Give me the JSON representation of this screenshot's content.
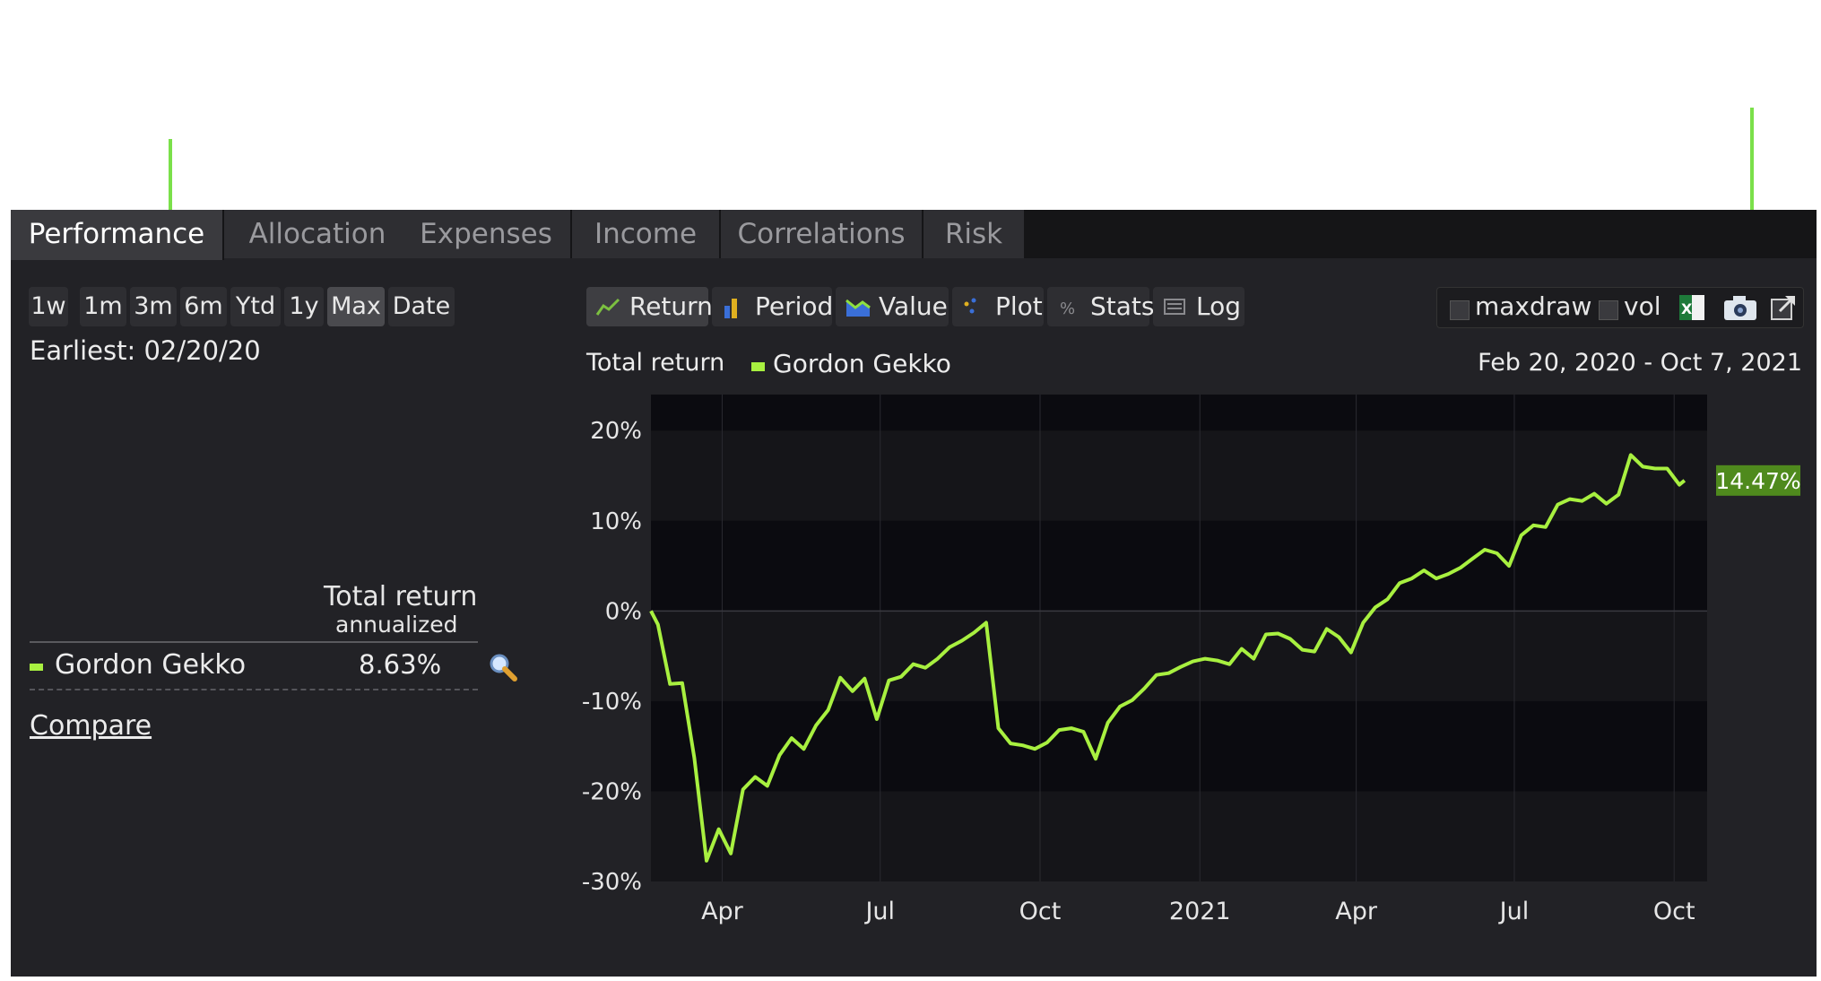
{
  "tabs": [
    "Performance",
    "Allocation",
    "Expenses",
    "Income",
    "Correlations",
    "Risk"
  ],
  "active_tab": "Performance",
  "ranges": [
    "1w",
    "1m",
    "3m",
    "6m",
    "Ytd",
    "1y",
    "Max",
    "Date"
  ],
  "active_range": "Max",
  "earliest": "Earliest: 02/20/20",
  "table": {
    "header": "Total return",
    "subheader": "annualized",
    "row_name": "Gordon Gekko",
    "row_value": "8.63%"
  },
  "compare_link": "Compare",
  "views": [
    {
      "label": "Return",
      "icon": "line-chart-icon"
    },
    {
      "label": "Period",
      "icon": "bar-chart-icon"
    },
    {
      "label": "Value",
      "icon": "area-chart-icon"
    },
    {
      "label": "Plot",
      "icon": "scatter-icon"
    },
    {
      "label": "Stats",
      "icon": "percent-icon"
    },
    {
      "label": "Log",
      "icon": "list-icon"
    }
  ],
  "active_view": "Return",
  "options": {
    "maxdraw_label": "maxdraw",
    "vol_label": "vol",
    "maxdraw_checked": false,
    "vol_checked": false
  },
  "chart_header": {
    "title": "Total return",
    "legend": "Gordon Gekko",
    "date_range": "Feb 20, 2020 - Oct 7, 2021"
  },
  "colors": {
    "series": "#a8f040",
    "end_label_bg": "#4f8a1d",
    "arrow": "#7be04a"
  },
  "chart_data": {
    "type": "line",
    "title": "Total return",
    "xlabel": "",
    "ylabel": "",
    "ylim": [
      -30,
      24
    ],
    "y_ticks": [
      20,
      10,
      0,
      -10,
      -20,
      -30
    ],
    "y_tick_labels": [
      "20%",
      "10%",
      "0%",
      "-10%",
      "-20%",
      "-30%"
    ],
    "x_tick_labels": [
      "Apr",
      "Jul",
      "Oct",
      "2021",
      "Apr",
      "Jul",
      "Oct"
    ],
    "x_tick_dates": [
      "2020-04-01",
      "2020-07-01",
      "2020-10-01",
      "2021-01-01",
      "2021-04-01",
      "2021-07-01",
      "2021-10-01"
    ],
    "xlim": [
      "2020-02-20",
      "2021-10-20"
    ],
    "end_label": "14.47%",
    "series": [
      {
        "name": "Gordon Gekko",
        "points": [
          [
            "2020-02-20",
            0.0
          ],
          [
            "2020-02-24",
            -1.5
          ],
          [
            "2020-03-02",
            -8.1
          ],
          [
            "2020-03-09",
            -8.0
          ],
          [
            "2020-03-16",
            -16.3
          ],
          [
            "2020-03-23",
            -27.7
          ],
          [
            "2020-03-30",
            -24.2
          ],
          [
            "2020-04-06",
            -26.9
          ],
          [
            "2020-04-13",
            -19.8
          ],
          [
            "2020-04-20",
            -18.4
          ],
          [
            "2020-04-27",
            -19.4
          ],
          [
            "2020-05-04",
            -16.0
          ],
          [
            "2020-05-11",
            -14.1
          ],
          [
            "2020-05-18",
            -15.3
          ],
          [
            "2020-05-25",
            -12.7
          ],
          [
            "2020-06-01",
            -11.0
          ],
          [
            "2020-06-08",
            -7.4
          ],
          [
            "2020-06-15",
            -8.9
          ],
          [
            "2020-06-22",
            -7.5
          ],
          [
            "2020-06-29",
            -12.0
          ],
          [
            "2020-07-06",
            -7.7
          ],
          [
            "2020-07-13",
            -7.3
          ],
          [
            "2020-07-20",
            -5.9
          ],
          [
            "2020-07-27",
            -6.3
          ],
          [
            "2020-08-03",
            -5.3
          ],
          [
            "2020-08-10",
            -4.0
          ],
          [
            "2020-08-17",
            -3.3
          ],
          [
            "2020-08-24",
            -2.4
          ],
          [
            "2020-08-31",
            -1.3
          ],
          [
            "2020-09-07",
            -13.0
          ],
          [
            "2020-09-14",
            -14.7
          ],
          [
            "2020-09-21",
            -14.9
          ],
          [
            "2020-09-28",
            -15.3
          ],
          [
            "2020-10-05",
            -14.6
          ],
          [
            "2020-10-12",
            -13.2
          ],
          [
            "2020-10-19",
            -13.0
          ],
          [
            "2020-10-26",
            -13.4
          ],
          [
            "2020-11-02",
            -16.4
          ],
          [
            "2020-11-09",
            -12.4
          ],
          [
            "2020-11-16",
            -10.6
          ],
          [
            "2020-11-23",
            -9.9
          ],
          [
            "2020-11-30",
            -8.6
          ],
          [
            "2020-12-07",
            -7.1
          ],
          [
            "2020-12-14",
            -6.9
          ],
          [
            "2020-12-21",
            -6.2
          ],
          [
            "2020-12-28",
            -5.6
          ],
          [
            "2021-01-04",
            -5.3
          ],
          [
            "2021-01-11",
            -5.5
          ],
          [
            "2021-01-18",
            -5.9
          ],
          [
            "2021-01-25",
            -4.2
          ],
          [
            "2021-02-01",
            -5.3
          ],
          [
            "2021-02-08",
            -2.6
          ],
          [
            "2021-02-15",
            -2.5
          ],
          [
            "2021-02-22",
            -3.1
          ],
          [
            "2021-03-01",
            -4.3
          ],
          [
            "2021-03-08",
            -4.5
          ],
          [
            "2021-03-15",
            -2.0
          ],
          [
            "2021-03-22",
            -2.9
          ],
          [
            "2021-03-29",
            -4.6
          ],
          [
            "2021-04-05",
            -1.3
          ],
          [
            "2021-04-12",
            0.4
          ],
          [
            "2021-04-19",
            1.3
          ],
          [
            "2021-04-26",
            3.1
          ],
          [
            "2021-05-03",
            3.6
          ],
          [
            "2021-05-10",
            4.5
          ],
          [
            "2021-05-17",
            3.6
          ],
          [
            "2021-05-24",
            4.1
          ],
          [
            "2021-05-31",
            4.8
          ],
          [
            "2021-06-07",
            5.8
          ],
          [
            "2021-06-14",
            6.8
          ],
          [
            "2021-06-21",
            6.4
          ],
          [
            "2021-06-28",
            5.0
          ],
          [
            "2021-07-05",
            8.4
          ],
          [
            "2021-07-12",
            9.5
          ],
          [
            "2021-07-19",
            9.3
          ],
          [
            "2021-07-26",
            11.8
          ],
          [
            "2021-08-02",
            12.4
          ],
          [
            "2021-08-09",
            12.2
          ],
          [
            "2021-08-16",
            13.0
          ],
          [
            "2021-08-23",
            11.9
          ],
          [
            "2021-08-30",
            12.9
          ],
          [
            "2021-09-06",
            17.3
          ],
          [
            "2021-09-13",
            16.0
          ],
          [
            "2021-09-20",
            15.8
          ],
          [
            "2021-09-27",
            15.8
          ],
          [
            "2021-10-04",
            14.0
          ],
          [
            "2021-10-07",
            14.47
          ]
        ]
      }
    ]
  }
}
